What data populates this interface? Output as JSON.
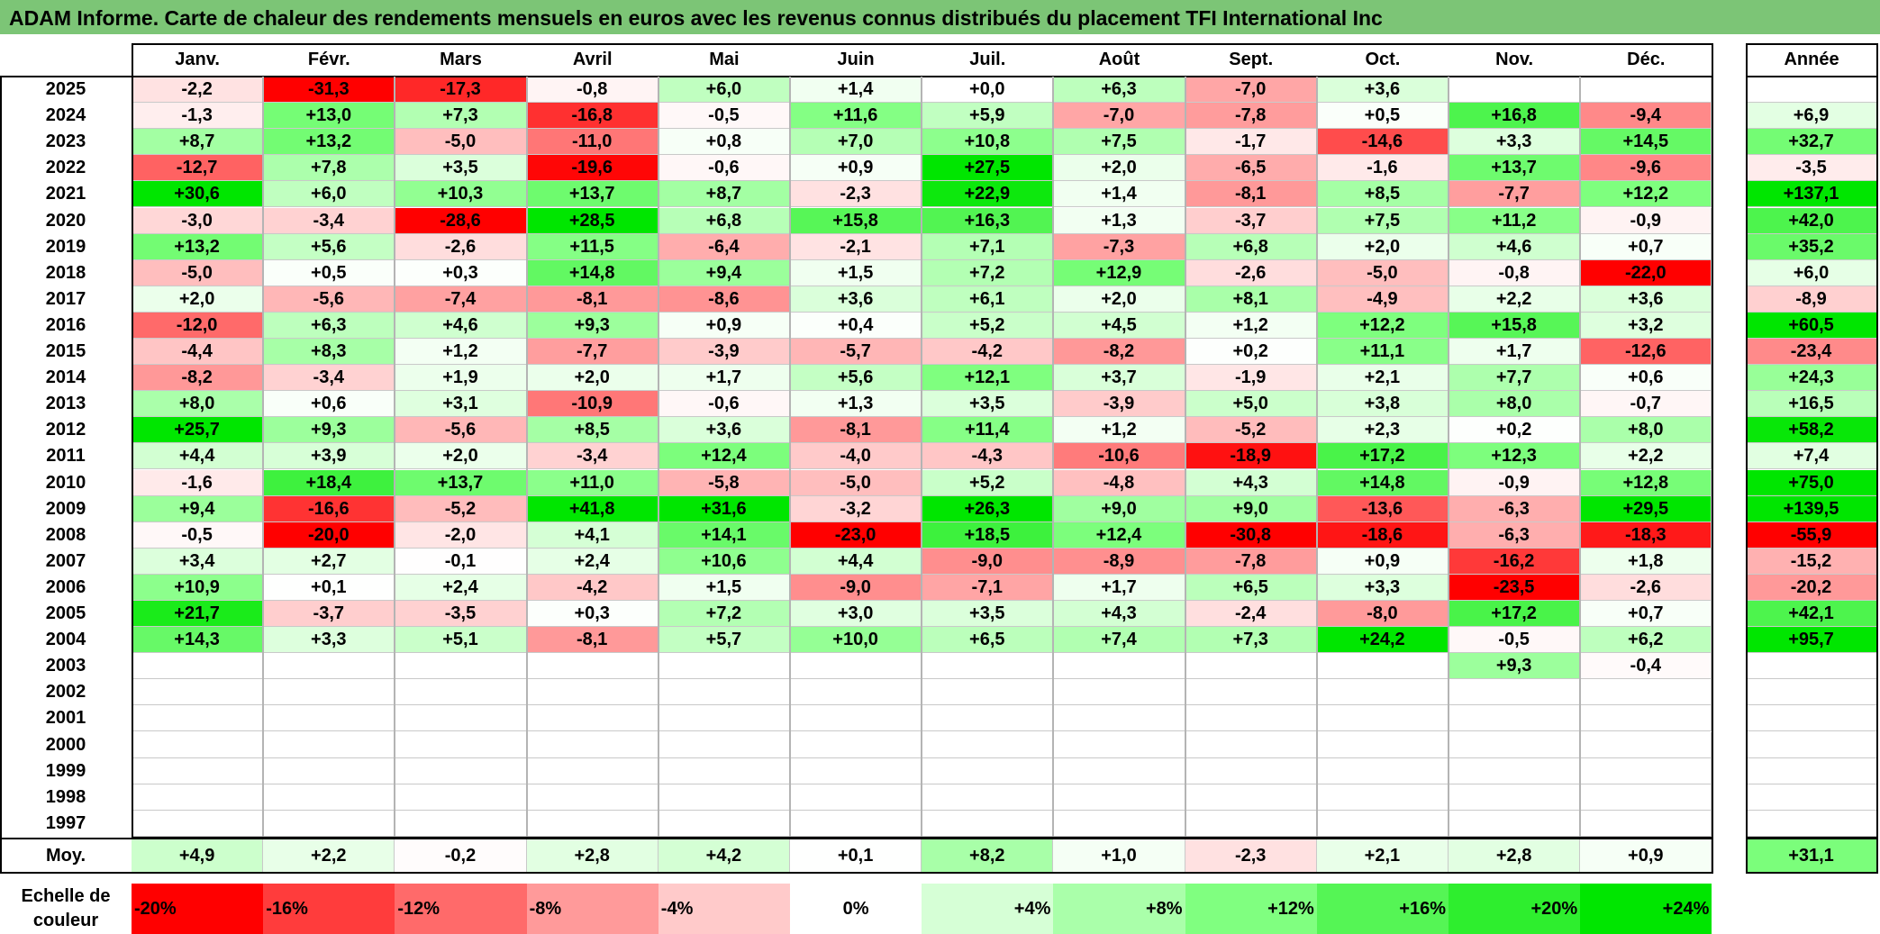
{
  "title": "ADAM Informe. Carte de chaleur des rendements mensuels en euros avec les revenus connus distribués du placement TFI International Inc",
  "chart_data": {
    "type": "heatmap",
    "title": "ADAM Informe. Carte de chaleur des rendements mensuels en euros avec les revenus connus distribués du placement TFI International Inc",
    "columns": [
      "Janv.",
      "Févr.",
      "Mars",
      "Avril",
      "Mai",
      "Juin",
      "Juil.",
      "Août",
      "Sept.",
      "Oct.",
      "Nov.",
      "Déc."
    ],
    "year_label": "Année",
    "rows": [
      {
        "year": "2025",
        "values": [
          -2.2,
          -31.3,
          -17.3,
          -0.8,
          6.0,
          1.4,
          0.0,
          6.3,
          -7.0,
          3.6,
          null,
          null
        ],
        "annual": null
      },
      {
        "year": "2024",
        "values": [
          -1.3,
          13.0,
          7.3,
          -16.8,
          -0.5,
          11.6,
          5.9,
          -7.0,
          -7.8,
          0.5,
          16.8,
          -9.4
        ],
        "annual": 6.9
      },
      {
        "year": "2023",
        "values": [
          8.7,
          13.2,
          -5.0,
          -11.0,
          0.8,
          7.0,
          10.8,
          7.5,
          -1.7,
          -14.6,
          3.3,
          14.5
        ],
        "annual": 32.7
      },
      {
        "year": "2022",
        "values": [
          -12.7,
          7.8,
          3.5,
          -19.6,
          -0.6,
          0.9,
          27.5,
          2.0,
          -6.5,
          -1.6,
          13.7,
          -9.6
        ],
        "annual": -3.5
      },
      {
        "year": "2021",
        "values": [
          30.6,
          6.0,
          10.3,
          13.7,
          8.7,
          -2.3,
          22.9,
          1.4,
          -8.1,
          8.5,
          -7.7,
          12.2
        ],
        "annual": 137.1
      },
      {
        "year": "2020",
        "values": [
          -3.0,
          -3.4,
          -28.6,
          28.5,
          6.8,
          15.8,
          16.3,
          1.3,
          -3.7,
          7.5,
          11.2,
          -0.9
        ],
        "annual": 42.0
      },
      {
        "year": "2019",
        "values": [
          13.2,
          5.6,
          -2.6,
          11.5,
          -6.4,
          -2.1,
          7.1,
          -7.3,
          6.8,
          2.0,
          4.6,
          0.7
        ],
        "annual": 35.2
      },
      {
        "year": "2018",
        "values": [
          -5.0,
          0.5,
          0.3,
          14.8,
          9.4,
          1.5,
          7.2,
          12.9,
          -2.6,
          -5.0,
          -0.8,
          -22.0
        ],
        "annual": 6.0
      },
      {
        "year": "2017",
        "values": [
          2.0,
          -5.6,
          -7.4,
          -8.1,
          -8.6,
          3.6,
          6.1,
          2.0,
          8.1,
          -4.9,
          2.2,
          3.6
        ],
        "annual": -8.9
      },
      {
        "year": "2016",
        "values": [
          -12.0,
          6.3,
          4.6,
          9.3,
          0.9,
          0.4,
          5.2,
          4.5,
          1.2,
          12.2,
          15.8,
          3.2
        ],
        "annual": 60.5
      },
      {
        "year": "2015",
        "values": [
          -4.4,
          8.3,
          1.2,
          -7.7,
          -3.9,
          -5.7,
          -4.2,
          -8.2,
          0.2,
          11.1,
          1.7,
          -12.6
        ],
        "annual": -23.4
      },
      {
        "year": "2014",
        "values": [
          -8.2,
          -3.4,
          1.9,
          2.0,
          1.7,
          5.6,
          12.1,
          3.7,
          -1.9,
          2.1,
          7.7,
          0.6
        ],
        "annual": 24.3
      },
      {
        "year": "2013",
        "values": [
          8.0,
          0.6,
          3.1,
          -10.9,
          -0.6,
          1.3,
          3.5,
          -3.9,
          5.0,
          3.8,
          8.0,
          -0.7
        ],
        "annual": 16.5
      },
      {
        "year": "2012",
        "values": [
          25.7,
          9.3,
          -5.6,
          8.5,
          3.6,
          -8.1,
          11.4,
          1.2,
          -5.2,
          2.3,
          0.2,
          8.0
        ],
        "annual": 58.2
      },
      {
        "year": "2011",
        "values": [
          4.4,
          3.9,
          2.0,
          -3.4,
          12.4,
          -4.0,
          -4.3,
          -10.6,
          -18.9,
          17.2,
          12.3,
          2.2
        ],
        "annual": 7.4
      },
      {
        "year": "2010",
        "values": [
          -1.6,
          18.4,
          13.7,
          11.0,
          -5.8,
          -5.0,
          5.2,
          -4.8,
          4.3,
          14.8,
          -0.9,
          12.8
        ],
        "annual": 75.0
      },
      {
        "year": "2009",
        "values": [
          9.4,
          -16.6,
          -5.2,
          41.8,
          31.6,
          -3.2,
          26.3,
          9.0,
          9.0,
          -13.6,
          -6.3,
          29.5
        ],
        "annual": 139.5
      },
      {
        "year": "2008",
        "values": [
          -0.5,
          -20.0,
          -2.0,
          4.1,
          14.1,
          -23.0,
          18.5,
          12.4,
          -30.8,
          -18.6,
          -6.3,
          -18.3
        ],
        "annual": -55.9
      },
      {
        "year": "2007",
        "values": [
          3.4,
          2.7,
          -0.1,
          2.4,
          10.6,
          4.4,
          -9.0,
          -8.9,
          -7.8,
          0.9,
          -16.2,
          1.8
        ],
        "annual": -15.2
      },
      {
        "year": "2006",
        "values": [
          10.9,
          0.1,
          2.4,
          -4.2,
          1.5,
          -9.0,
          -7.1,
          1.7,
          6.5,
          3.3,
          -23.5,
          -2.6
        ],
        "annual": -20.2
      },
      {
        "year": "2005",
        "values": [
          21.7,
          -3.7,
          -3.5,
          0.3,
          7.2,
          3.0,
          3.5,
          4.3,
          -2.4,
          -8.0,
          17.2,
          0.7
        ],
        "annual": 42.1
      },
      {
        "year": "2004",
        "values": [
          14.3,
          3.3,
          5.1,
          -8.1,
          5.7,
          10.0,
          6.5,
          7.4,
          7.3,
          24.2,
          -0.5,
          6.2
        ],
        "annual": 95.7
      },
      {
        "year": "2003",
        "values": [
          null,
          null,
          null,
          null,
          null,
          null,
          null,
          null,
          null,
          null,
          9.3,
          -0.4
        ],
        "annual": null
      },
      {
        "year": "2002",
        "values": [
          null,
          null,
          null,
          null,
          null,
          null,
          null,
          null,
          null,
          null,
          null,
          null
        ],
        "annual": null
      },
      {
        "year": "2001",
        "values": [
          null,
          null,
          null,
          null,
          null,
          null,
          null,
          null,
          null,
          null,
          null,
          null
        ],
        "annual": null
      },
      {
        "year": "2000",
        "values": [
          null,
          null,
          null,
          null,
          null,
          null,
          null,
          null,
          null,
          null,
          null,
          null
        ],
        "annual": null
      },
      {
        "year": "1999",
        "values": [
          null,
          null,
          null,
          null,
          null,
          null,
          null,
          null,
          null,
          null,
          null,
          null
        ],
        "annual": null
      },
      {
        "year": "1998",
        "values": [
          null,
          null,
          null,
          null,
          null,
          null,
          null,
          null,
          null,
          null,
          null,
          null
        ],
        "annual": null
      },
      {
        "year": "1997",
        "values": [
          null,
          null,
          null,
          null,
          null,
          null,
          null,
          null,
          null,
          null,
          null,
          null
        ],
        "annual": null
      }
    ],
    "average": {
      "label": "Moy.",
      "values": [
        4.9,
        2.2,
        -0.2,
        2.8,
        4.2,
        0.1,
        8.2,
        1.0,
        -2.3,
        2.1,
        2.8,
        0.9
      ],
      "annual": 31.1
    },
    "color_scale": {
      "label": "Echelle de couleur",
      "stops": [
        {
          "label": "-20%",
          "value": -20,
          "color": "#ff0000"
        },
        {
          "label": "-16%",
          "value": -16,
          "color": "#ff3c3c"
        },
        {
          "label": "-12%",
          "value": -12,
          "color": "#ff6a6a"
        },
        {
          "label": "-8%",
          "value": -8,
          "color": "#ff9a9a"
        },
        {
          "label": "-4%",
          "value": -4,
          "color": "#ffcaca"
        },
        {
          "label": "0%",
          "value": 0,
          "color": "#ffffff"
        },
        {
          "label": "+4%",
          "value": 4,
          "color": "#d6ffd6"
        },
        {
          "label": "+8%",
          "value": 8,
          "color": "#aaffaa"
        },
        {
          "label": "+12%",
          "value": 12,
          "color": "#80ff80"
        },
        {
          "label": "+16%",
          "value": 16,
          "color": "#55f555"
        },
        {
          "label": "+20%",
          "value": 20,
          "color": "#2eee2e"
        },
        {
          "label": "+24%",
          "value": 24,
          "color": "#00e600"
        }
      ]
    }
  }
}
